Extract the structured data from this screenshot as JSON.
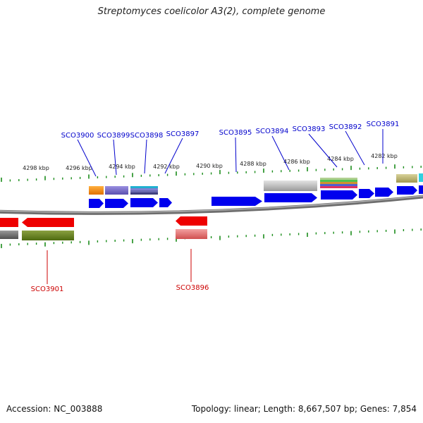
{
  "title": "Streptomyces coelicolor A3(2), complete genome",
  "footer": {
    "accession": "Accession: NC_003888",
    "summary": "Topology: linear; Length: 8,667,507 bp; Genes: 7,854"
  },
  "scale_labels": [
    "4298 kbp",
    "4296 kbp",
    "4294 kbp",
    "4292 kbp",
    "4290 kbp",
    "4288 kbp",
    "4286 kbp",
    "4284 kbp",
    "4282 kbp"
  ],
  "genes_forward": [
    "SCO3900",
    "SCO3899",
    "SCO3898",
    "SCO3897",
    "SCO3895",
    "SCO3894",
    "SCO3893",
    "SCO3892",
    "SCO3891"
  ],
  "genes_reverse": [
    "SCO3901",
    "SCO3896"
  ],
  "colors": {
    "forward_gene": "#0000ee",
    "reverse_gene": "#ee0000",
    "forward_label": "#0000cc",
    "reverse_label": "#cc0000",
    "backbone": "#808080",
    "tick": "#1a8c1a"
  }
}
